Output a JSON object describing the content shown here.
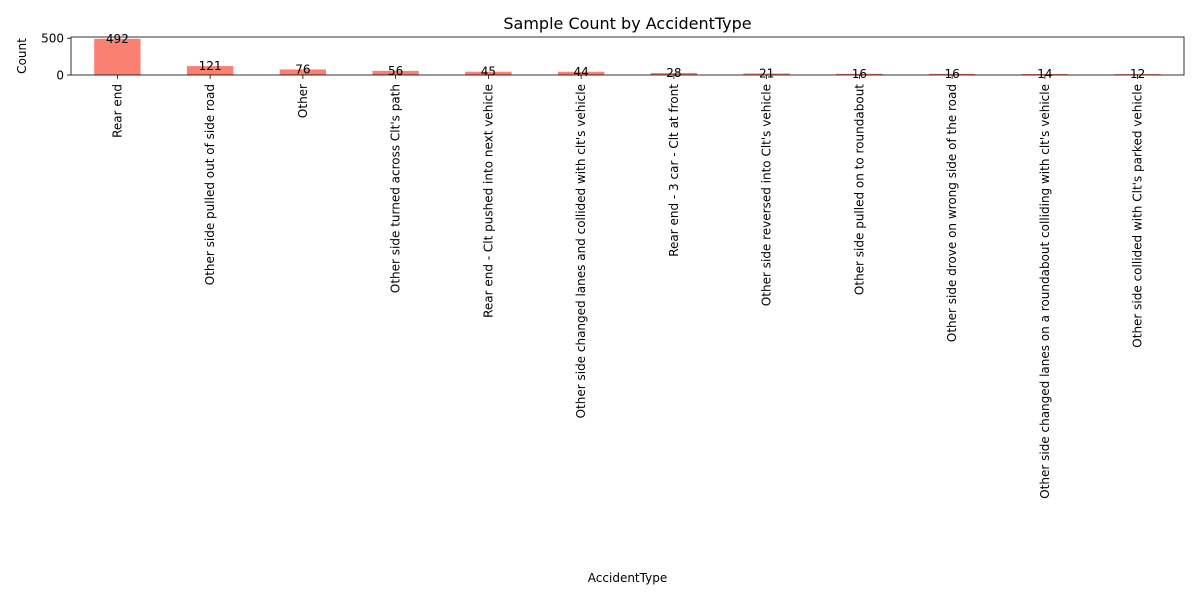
{
  "chart_data": {
    "type": "bar",
    "title": "Sample Count by AccidentType",
    "xlabel": "AccidentType",
    "ylabel": "Count",
    "ylim": [
      0,
      516.6
    ],
    "yticks": [
      0,
      500
    ],
    "grid": false,
    "legend": "none",
    "bar_color": "#fa8072",
    "categories": [
      "Rear end",
      "Other side pulled out of side road",
      "Other",
      "Other side turned across Clt's path",
      "Rear end - Clt pushed into next vehicle",
      "Other side changed lanes and collided with clt's vehicle",
      "Rear end - 3 car - Clt at front",
      "Other side reversed into Clt's vehicle",
      "Other side pulled on to roundabout",
      "Other side drove on wrong side of the road",
      "Other side changed lanes on a roundabout colliding with clt's vehicle",
      "Other side collided with Clt's parked vehicle"
    ],
    "values": [
      492,
      121,
      76,
      56,
      45,
      44,
      28,
      21,
      16,
      16,
      14,
      12
    ]
  }
}
